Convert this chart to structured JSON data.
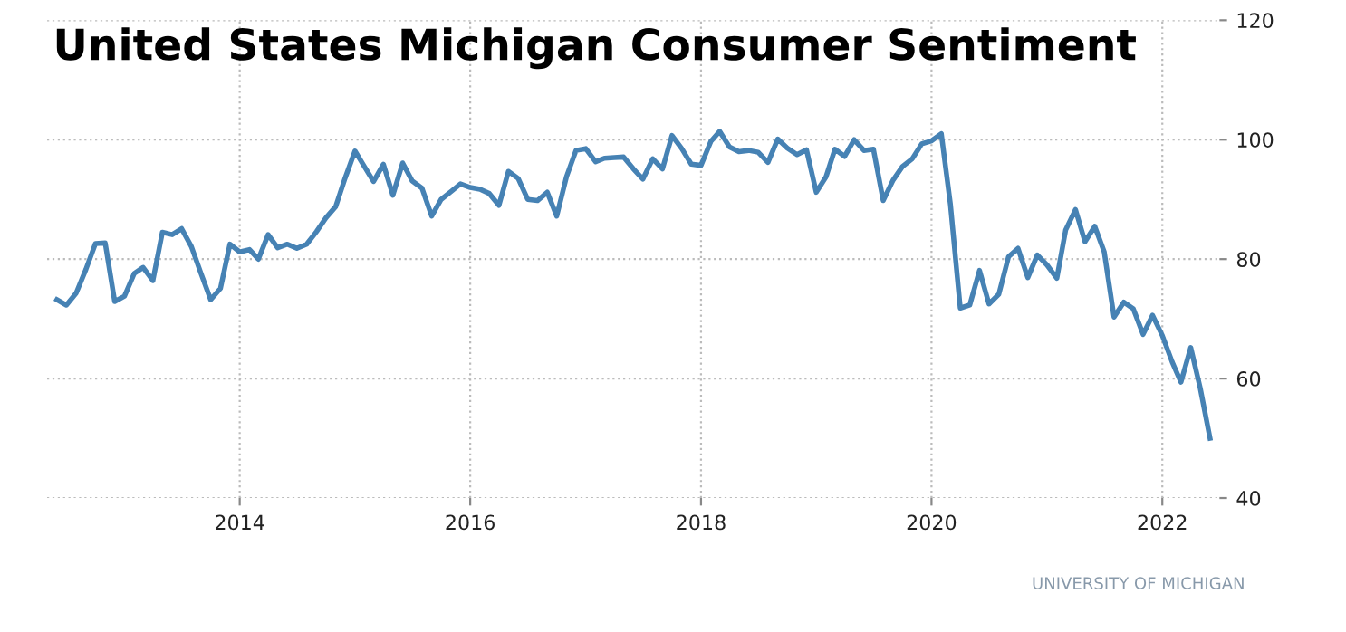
{
  "chart_data": {
    "type": "line",
    "title": "United States Michigan Consumer Sentiment",
    "annotations": [
      "UNIVERSITY OF MICHIGAN"
    ],
    "x": [
      "2012-06",
      "2012-07",
      "2012-08",
      "2012-09",
      "2012-10",
      "2012-11",
      "2012-12",
      "2013-01",
      "2013-02",
      "2013-03",
      "2013-04",
      "2013-05",
      "2013-06",
      "2013-07",
      "2013-08",
      "2013-09",
      "2013-10",
      "2013-11",
      "2013-12",
      "2014-01",
      "2014-02",
      "2014-03",
      "2014-04",
      "2014-05",
      "2014-06",
      "2014-07",
      "2014-08",
      "2014-09",
      "2014-10",
      "2014-11",
      "2014-12",
      "2015-01",
      "2015-02",
      "2015-03",
      "2015-04",
      "2015-05",
      "2015-06",
      "2015-07",
      "2015-08",
      "2015-09",
      "2015-10",
      "2015-11",
      "2015-12",
      "2016-01",
      "2016-02",
      "2016-03",
      "2016-04",
      "2016-05",
      "2016-06",
      "2016-07",
      "2016-08",
      "2016-09",
      "2016-10",
      "2016-11",
      "2016-12",
      "2017-01",
      "2017-02",
      "2017-03",
      "2017-04",
      "2017-05",
      "2017-06",
      "2017-07",
      "2017-08",
      "2017-09",
      "2017-10",
      "2017-11",
      "2017-12",
      "2018-01",
      "2018-02",
      "2018-03",
      "2018-04",
      "2018-05",
      "2018-06",
      "2018-07",
      "2018-08",
      "2018-09",
      "2018-10",
      "2018-11",
      "2018-12",
      "2019-01",
      "2019-02",
      "2019-03",
      "2019-04",
      "2019-05",
      "2019-06",
      "2019-07",
      "2019-08",
      "2019-09",
      "2019-10",
      "2019-11",
      "2019-12",
      "2020-01",
      "2020-02",
      "2020-03",
      "2020-04",
      "2020-05",
      "2020-06",
      "2020-07",
      "2020-08",
      "2020-09",
      "2020-10",
      "2020-11",
      "2020-12",
      "2021-01",
      "2021-02",
      "2021-03",
      "2021-04",
      "2021-05",
      "2021-06",
      "2021-07",
      "2021-08",
      "2021-09",
      "2021-10",
      "2021-11",
      "2021-12",
      "2022-01",
      "2022-02",
      "2022-03",
      "2022-04",
      "2022-05",
      "2022-06"
    ],
    "series": [
      {
        "color": "#4682b4",
        "values": [
          73.2,
          72.3,
          74.3,
          78.3,
          82.6,
          82.7,
          72.9,
          73.8,
          77.6,
          78.6,
          76.4,
          84.5,
          84.1,
          85.1,
          82.1,
          77.5,
          73.2,
          75.1,
          82.5,
          81.2,
          81.6,
          80.0,
          84.1,
          81.9,
          82.5,
          81.8,
          82.5,
          84.6,
          86.9,
          88.8,
          93.6,
          98.1,
          95.4,
          93.0,
          95.9,
          90.7,
          96.1,
          93.1,
          91.9,
          87.2,
          90.0,
          91.3,
          92.6,
          92.0,
          91.7,
          91.0,
          89.0,
          94.7,
          93.5,
          90.0,
          89.8,
          91.2,
          87.2,
          93.8,
          98.2,
          98.5,
          96.3,
          96.9,
          97.0,
          97.1,
          95.1,
          93.4,
          96.8,
          95.1,
          100.7,
          98.5,
          95.9,
          95.7,
          99.7,
          101.4,
          98.8,
          98.0,
          98.2,
          97.9,
          96.2,
          100.1,
          98.6,
          97.5,
          98.3,
          91.2,
          93.8,
          98.4,
          97.2,
          100.0,
          98.2,
          98.4,
          89.8,
          93.2,
          95.5,
          96.8,
          99.3,
          99.8,
          101.0,
          89.1,
          71.8,
          72.3,
          78.1,
          72.5,
          74.1,
          80.4,
          81.8,
          76.9,
          80.7,
          79.0,
          76.8,
          84.9,
          88.3,
          82.9,
          85.5,
          81.2,
          70.3,
          72.8,
          71.7,
          67.4,
          70.6,
          67.2,
          62.8,
          59.4,
          65.2,
          58.4,
          50.0
        ]
      }
    ],
    "xlim": [
      "2012-05-01",
      "2022-07-01"
    ],
    "xticks": [
      {
        "value": "2014-01-01",
        "label": "2014"
      },
      {
        "value": "2016-01-01",
        "label": "2016"
      },
      {
        "value": "2018-01-01",
        "label": "2018"
      },
      {
        "value": "2020-01-01",
        "label": "2020"
      },
      {
        "value": "2022-01-01",
        "label": "2022"
      }
    ],
    "ylim": [
      40,
      120
    ],
    "yticks": [
      40,
      60,
      80,
      100,
      120
    ],
    "grid": true,
    "line_style": "solid",
    "marker": "none"
  }
}
